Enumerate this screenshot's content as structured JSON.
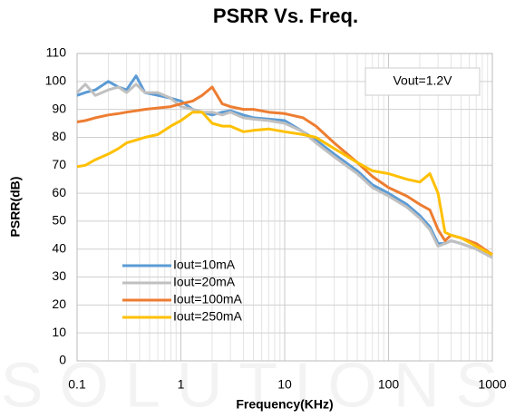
{
  "chart_data": {
    "type": "line",
    "title": "PSRR Vs. Freq.",
    "xlabel": "Frequency(KHz)",
    "ylabel": "PSRR(dB)",
    "annotation": "Vout=1.2V",
    "watermark": "SOLUTIONS",
    "x": [
      0.1,
      0.12,
      0.15,
      0.2,
      0.25,
      0.3,
      0.37,
      0.45,
      0.6,
      0.8,
      1,
      1.3,
      1.6,
      2,
      2.5,
      3,
      4,
      5,
      7,
      10,
      15,
      20,
      30,
      50,
      70,
      100,
      150,
      200,
      250,
      300,
      350,
      400,
      500,
      700,
      1000
    ],
    "series": [
      {
        "name": "Iout=10mA",
        "color": "#5b9bd5",
        "values": [
          95,
          96,
          97,
          100,
          98,
          97,
          102,
          96,
          95,
          94,
          93,
          90,
          89,
          88,
          89,
          89.5,
          88,
          87,
          86.5,
          86,
          82,
          79,
          74,
          68,
          63,
          60,
          56,
          52,
          48,
          42,
          42,
          43,
          42,
          40,
          37
        ]
      },
      {
        "name": "Iout=20mA",
        "color": "#c0c0c0",
        "values": [
          96,
          99,
          95,
          97,
          98,
          96,
          99,
          96,
          96,
          94,
          91,
          90,
          89,
          89,
          88,
          89,
          87,
          86.5,
          86,
          85,
          82,
          78,
          73,
          67,
          62,
          59,
          55,
          51,
          47,
          41,
          42,
          43,
          42,
          40,
          37
        ]
      },
      {
        "name": "Iout=100mA",
        "color": "#ed7d31",
        "values": [
          85.5,
          86,
          87,
          88,
          88.5,
          89,
          89.5,
          90,
          90.5,
          91,
          92,
          93,
          95,
          98,
          92,
          91,
          90,
          90,
          89,
          88.5,
          87,
          84,
          78,
          71,
          66,
          62,
          59,
          56,
          54,
          47,
          43,
          45,
          44,
          42,
          38
        ]
      },
      {
        "name": "Iout=250mA",
        "color": "#ffc000",
        "values": [
          69.5,
          70,
          72,
          74,
          76,
          78,
          79,
          80,
          81,
          84,
          86,
          89,
          89,
          85,
          84,
          84,
          82,
          82.5,
          83,
          82,
          81,
          80,
          76,
          71,
          68,
          67,
          65,
          64,
          67,
          60,
          46,
          45,
          44,
          41,
          38
        ]
      }
    ],
    "xlog": true,
    "xlim": [
      0.1,
      1000
    ],
    "xticks": [
      0.1,
      1,
      10,
      100,
      1000
    ],
    "ylim": [
      0,
      110
    ],
    "yticks": [
      0,
      10,
      20,
      30,
      40,
      50,
      60,
      70,
      80,
      90,
      100,
      110
    ],
    "grid": true,
    "legend": "lower left"
  }
}
